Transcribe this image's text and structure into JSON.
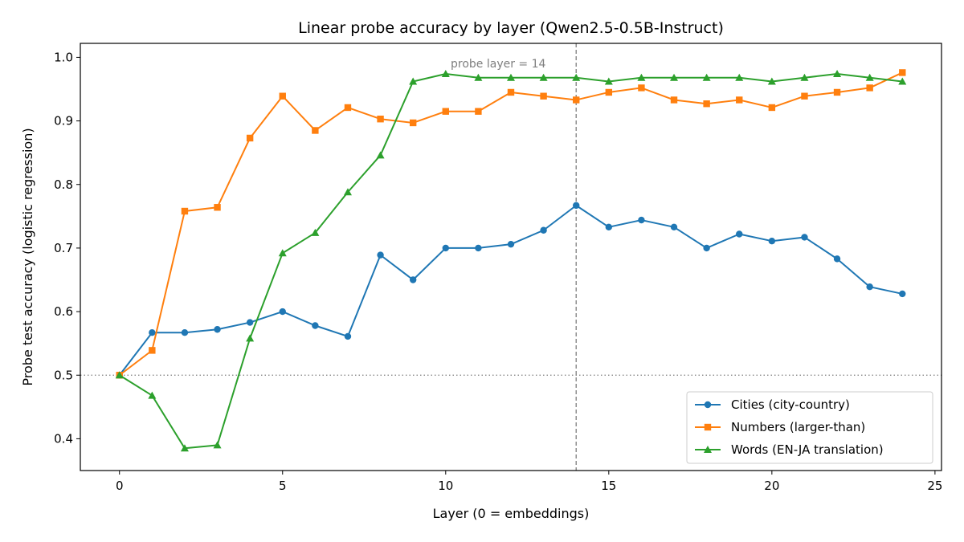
{
  "chart_data": {
    "type": "line",
    "title": "Linear probe accuracy by layer (Qwen2.5-0.5B-Instruct)",
    "xlabel": "Layer (0 = embeddings)",
    "ylabel": "Probe test accuracy (logistic regression)",
    "xlim": [
      -1.2,
      25.2
    ],
    "ylim": [
      0.35,
      1.022
    ],
    "xticks": [
      0,
      5,
      10,
      15,
      20,
      25
    ],
    "yticks": [
      0.4,
      0.5,
      0.6,
      0.7,
      0.8,
      0.9,
      1.0
    ],
    "ytick_labels": [
      "0.4",
      "0.5",
      "0.6",
      "0.7",
      "0.8",
      "0.9",
      "1.0"
    ],
    "x": [
      0,
      1,
      2,
      3,
      4,
      5,
      6,
      7,
      8,
      9,
      10,
      11,
      12,
      13,
      14,
      15,
      16,
      17,
      18,
      19,
      20,
      21,
      22,
      23,
      24
    ],
    "series": [
      {
        "name": "Cities (city-country)",
        "color": "#1f77b4",
        "marker": "circle",
        "values": [
          0.5,
          0.567,
          0.567,
          0.572,
          0.583,
          0.6,
          0.578,
          0.561,
          0.689,
          0.65,
          0.7,
          0.7,
          0.706,
          0.728,
          0.767,
          0.733,
          0.744,
          0.733,
          0.7,
          0.722,
          0.711,
          0.717,
          0.683,
          0.639,
          0.628
        ]
      },
      {
        "name": "Numbers (larger-than)",
        "color": "#ff7f0e",
        "marker": "square",
        "values": [
          0.5,
          0.539,
          0.758,
          0.764,
          0.873,
          0.939,
          0.885,
          0.921,
          0.903,
          0.897,
          0.915,
          0.915,
          0.945,
          0.939,
          0.933,
          0.945,
          0.952,
          0.933,
          0.927,
          0.933,
          0.921,
          0.939,
          0.945,
          0.952,
          0.976
        ]
      },
      {
        "name": "Words (EN-JA translation)",
        "color": "#2ca02c",
        "marker": "triangle",
        "values": [
          0.5,
          0.468,
          0.385,
          0.39,
          0.558,
          0.692,
          0.724,
          0.788,
          0.846,
          0.962,
          0.974,
          0.968,
          0.968,
          0.968,
          0.968,
          0.962,
          0.968,
          0.968,
          0.968,
          0.968,
          0.962,
          0.968,
          0.974,
          0.968,
          0.962
        ]
      }
    ],
    "reference_lines": {
      "horizontal": {
        "y": 0.5,
        "style": "dotted",
        "color": "#7f7f7f"
      },
      "vertical": {
        "x": 14,
        "style": "dashed",
        "color": "#7f7f7f",
        "label": "probe layer = 14"
      }
    },
    "legend_position": "bottom-right",
    "grid": false
  }
}
